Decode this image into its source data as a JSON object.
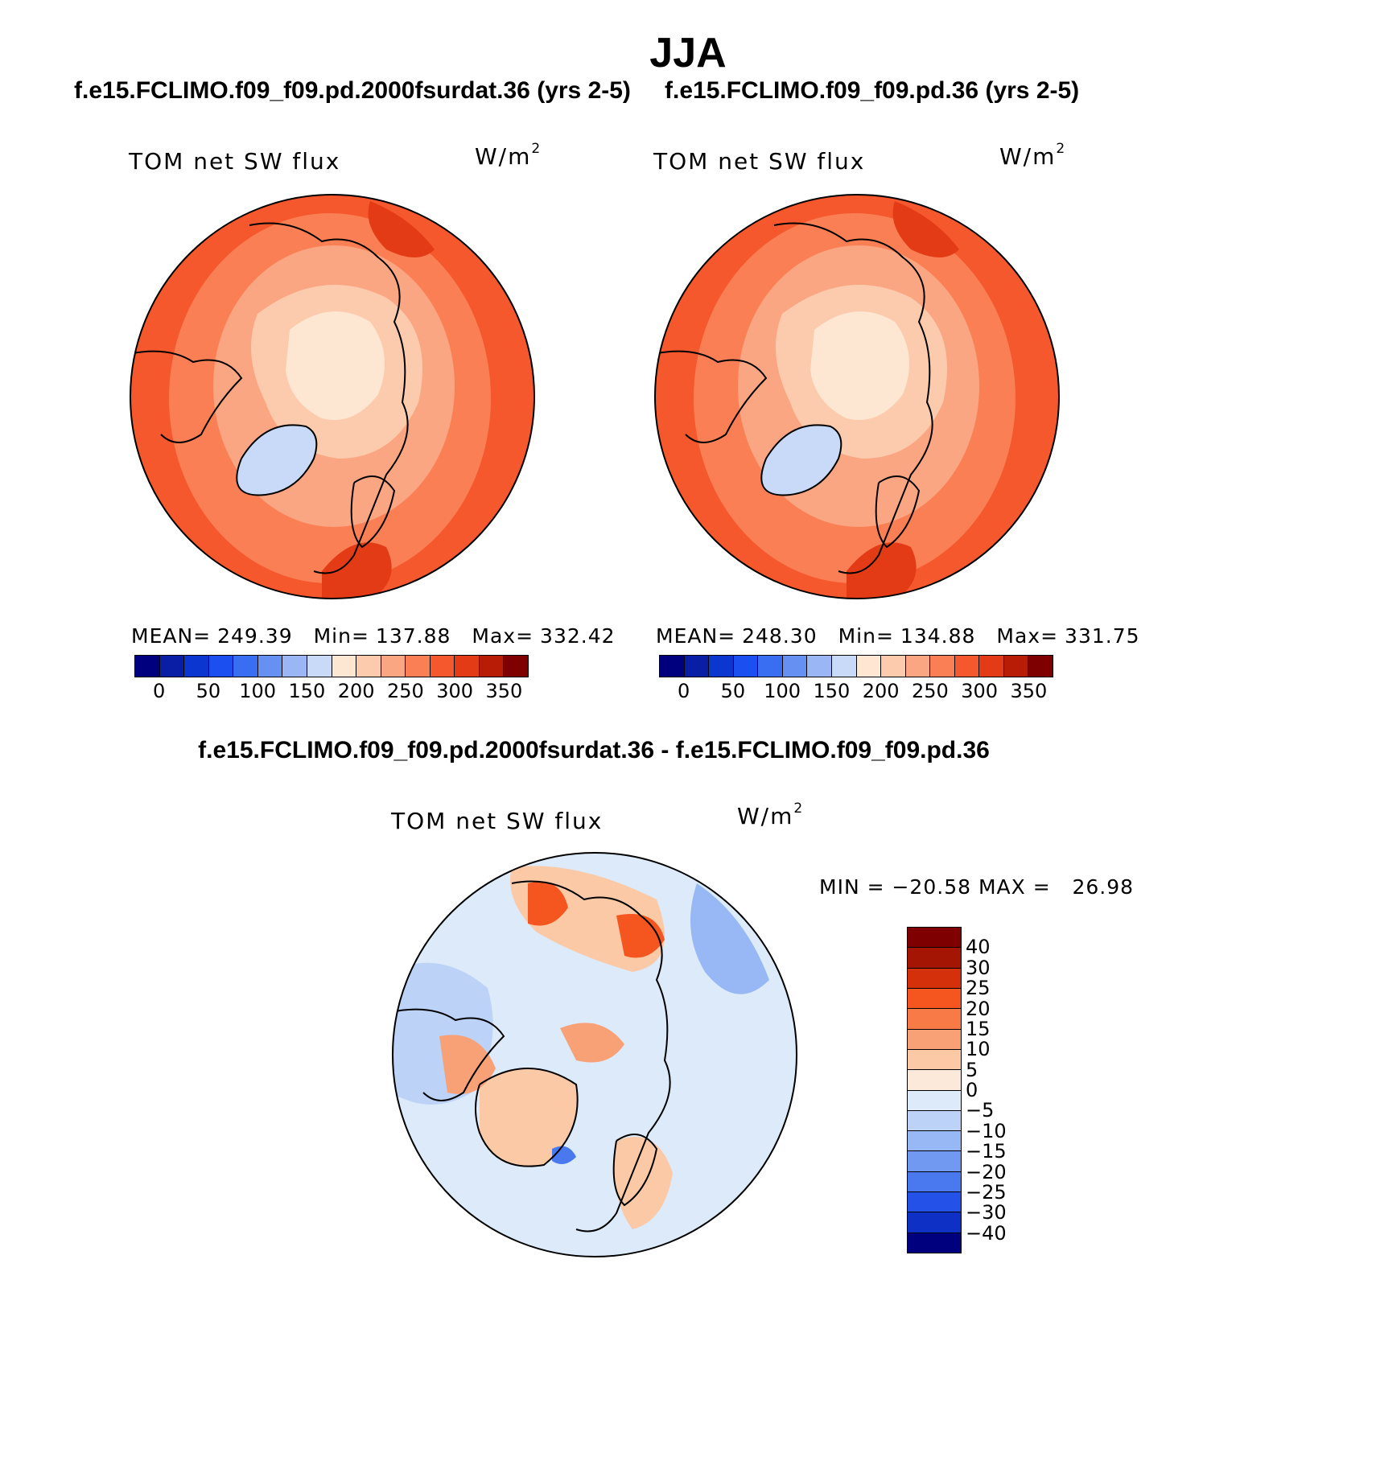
{
  "figure": {
    "title": "JJA",
    "panels": [
      {
        "case_title": "f.e15.FCLIMO.f09_f09.pd.2000fsurdat.36 (yrs 2-5)",
        "variable_label": "TOM net SW flux",
        "units_base": "W/m",
        "units_exp": "2",
        "stats": {
          "mean_label": "MEAN=",
          "mean_value": "249.39",
          "min_label": "Min=",
          "min_value": "137.88",
          "max_label": "Max=",
          "max_value": "332.42"
        }
      },
      {
        "case_title": "f.e15.FCLIMO.f09_f09.pd.36 (yrs 2-5)",
        "variable_label": "TOM net SW flux",
        "units_base": "W/m",
        "units_exp": "2",
        "stats": {
          "mean_label": "MEAN=",
          "mean_value": "248.30",
          "min_label": "Min=",
          "min_value": "134.88",
          "max_label": "Max=",
          "max_value": "331.75"
        }
      }
    ],
    "diff_panel": {
      "case_title": "f.e15.FCLIMO.f09_f09.pd.2000fsurdat.36 - f.e15.FCLIMO.f09_f09.pd.36",
      "variable_label": "TOM net SW flux",
      "units_base": "W/m",
      "units_exp": "2",
      "minmax_text": "MIN = −20.58 MAX =   26.98"
    }
  },
  "colorbars": {
    "absolute": {
      "colors": [
        "#00007f",
        "#0a1ea5",
        "#0b37d0",
        "#1c4ff0",
        "#3a6ef2",
        "#6690f2",
        "#9bb6f5",
        "#c9daf8",
        "#fde7d2",
        "#fccbae",
        "#fba682",
        "#fa7f55",
        "#f5582c",
        "#e33b16",
        "#b81c06",
        "#7f0000"
      ],
      "tick_labels": [
        "0",
        "50",
        "100",
        "150",
        "200",
        "250",
        "300",
        "350"
      ]
    },
    "difference": {
      "colors": [
        "#7f0000",
        "#a51504",
        "#d4300c",
        "#f5561f",
        "#f77a47",
        "#f8a177",
        "#fbc9a6",
        "#fde9d9",
        "#dceafa",
        "#bcd2f7",
        "#98b8f5",
        "#7199f2",
        "#4a78ef",
        "#2452e8",
        "#0e30c4",
        "#00007f"
      ],
      "tick_labels": [
        "40",
        "30",
        "25",
        "20",
        "15",
        "10",
        "5",
        "0",
        "−5",
        "−10",
        "−15",
        "−20",
        "−25",
        "−30",
        "−40"
      ]
    }
  },
  "map_fields": {
    "panel1": {
      "ocean": "#f5582c",
      "outer": "#fa7f55",
      "mid": "#fba682",
      "inner": "#fccbae",
      "pole": "#fde7d2",
      "greenland": "#c9daf8",
      "greenland_edge": "#9bb6f5",
      "hot": "#e33b16"
    },
    "panel2": {
      "ocean": "#f5582c",
      "outer": "#fa7f55",
      "mid": "#fba682",
      "inner": "#fccbae",
      "pole": "#fde7d2",
      "greenland": "#c9daf8",
      "greenland_edge": "#9bb6f5",
      "hot": "#e33b16"
    },
    "diff": {
      "base": "#dceafa",
      "warm": "#fbc9a6",
      "warm2": "#f8a177",
      "hot": "#f5561f",
      "cool": "#bcd2f7",
      "cool2": "#98b8f5",
      "deep": "#4a78ef"
    }
  }
}
